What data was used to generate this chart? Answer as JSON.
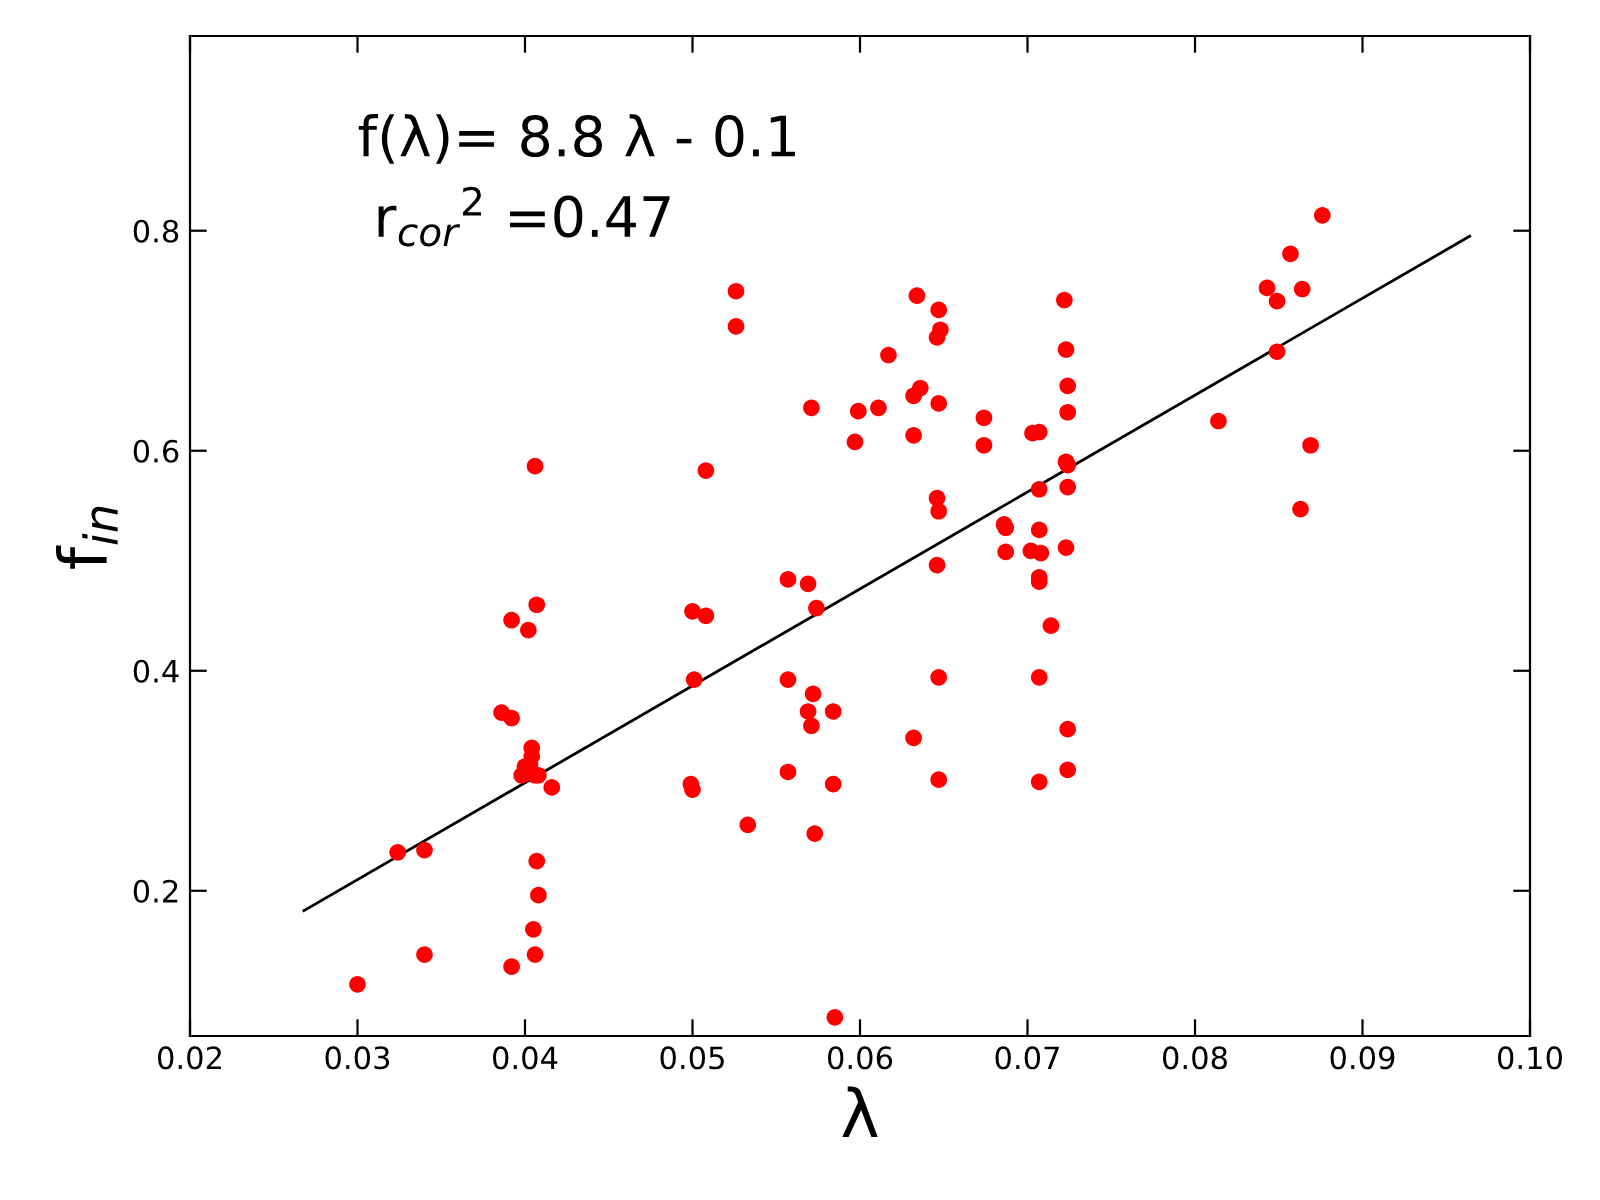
{
  "chart_data": {
    "type": "scatter",
    "xlabel": "λ",
    "ylabel": "f$_{in}$",
    "annotations": [
      "f(λ)= 8.8 λ - 0.1",
      "r$_{cor}$$^{2}$ =0.47"
    ],
    "xlim": [
      0.02,
      0.1
    ],
    "xticks": [
      0.02,
      0.03,
      0.04,
      0.05,
      0.06,
      0.07,
      0.08,
      0.09,
      {
        "value": 0.1,
        "label": "0.10"
      }
    ],
    "ylim": [
      0.068,
      0.977
    ],
    "yticks": [
      0.2,
      0.4,
      0.6,
      0.8
    ],
    "grid": false,
    "series": [
      {
        "color": "#ff0000",
        "marker": "circle",
        "x": [
          0.03,
          0.0324,
          0.034,
          0.034,
          0.0386,
          0.0392,
          0.0392,
          0.0406,
          0.0405,
          0.0408,
          0.0407,
          0.0404,
          0.0404,
          0.0403,
          0.04,
          0.0406,
          0.0398,
          0.0408,
          0.0416,
          0.0392,
          0.0402,
          0.0407,
          0.0526,
          0.0526,
          0.0406,
          0.0508,
          0.0571,
          0.0599,
          0.0597,
          0.05,
          0.0508,
          0.0501,
          0.0499,
          0.05,
          0.0533,
          0.0557,
          0.0569,
          0.0574,
          0.0557,
          0.0572,
          0.0569,
          0.0571,
          0.0584,
          0.0557,
          0.0584,
          0.0573,
          0.0585,
          0.0634,
          0.0647,
          0.0648,
          0.0646,
          0.0617,
          0.0611,
          0.0636,
          0.0632,
          0.0647,
          0.0632,
          0.0722,
          0.0723,
          0.0724,
          0.0724,
          0.0674,
          0.0674,
          0.0703,
          0.0707,
          0.0723,
          0.0724,
          0.0724,
          0.0707,
          0.0646,
          0.0647,
          0.0686,
          0.0687,
          0.0707,
          0.0876,
          0.0857,
          0.0843,
          0.0864,
          0.0849,
          0.0849,
          0.0814,
          0.0869,
          0.0863,
          0.0646,
          0.0687,
          0.0702,
          0.0708,
          0.0723,
          0.0707,
          0.0707,
          0.0714,
          0.0647,
          0.0707,
          0.0632,
          0.0724,
          0.0647,
          0.0707,
          0.0724
        ],
        "values": [
          0.115,
          0.235,
          0.237,
          0.142,
          0.362,
          0.357,
          0.131,
          0.142,
          0.165,
          0.196,
          0.227,
          0.33,
          0.322,
          0.315,
          0.313,
          0.305,
          0.305,
          0.305,
          0.294,
          0.446,
          0.437,
          0.46,
          0.745,
          0.713,
          0.586,
          0.582,
          0.639,
          0.636,
          0.608,
          0.454,
          0.45,
          0.392,
          0.297,
          0.292,
          0.26,
          0.483,
          0.479,
          0.457,
          0.392,
          0.379,
          0.363,
          0.35,
          0.363,
          0.308,
          0.297,
          0.252,
          0.085,
          0.741,
          0.728,
          0.71,
          0.703,
          0.687,
          0.639,
          0.657,
          0.65,
          0.643,
          0.614,
          0.737,
          0.692,
          0.659,
          0.635,
          0.63,
          0.605,
          0.616,
          0.617,
          0.59,
          0.587,
          0.567,
          0.565,
          0.557,
          0.545,
          0.533,
          0.53,
          0.528,
          0.814,
          0.779,
          0.748,
          0.747,
          0.736,
          0.69,
          0.627,
          0.605,
          0.547,
          0.496,
          0.508,
          0.509,
          0.507,
          0.512,
          0.485,
          0.481,
          0.441,
          0.394,
          0.394,
          0.339,
          0.347,
          0.301,
          0.299,
          0.31
        ]
      },
      {
        "type": "line",
        "color": "#000000",
        "x": [
          0.0268,
          0.0964
        ],
        "values": [
          0.182,
          0.795
        ]
      }
    ]
  }
}
